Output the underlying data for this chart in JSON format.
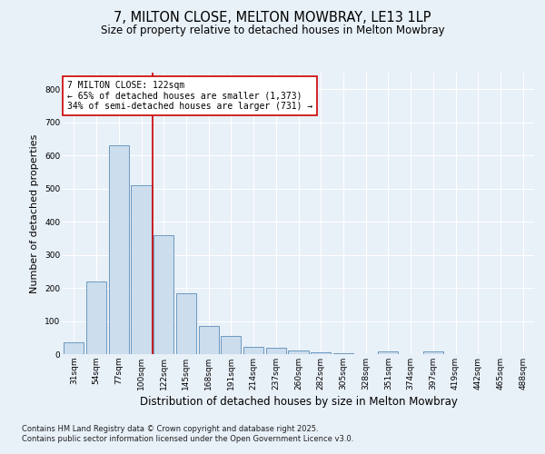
{
  "title": "7, MILTON CLOSE, MELTON MOWBRAY, LE13 1LP",
  "subtitle": "Size of property relative to detached houses in Melton Mowbray",
  "xlabel": "Distribution of detached houses by size in Melton Mowbray",
  "ylabel": "Number of detached properties",
  "categories": [
    "31sqm",
    "54sqm",
    "77sqm",
    "100sqm",
    "122sqm",
    "145sqm",
    "168sqm",
    "191sqm",
    "214sqm",
    "237sqm",
    "260sqm",
    "282sqm",
    "305sqm",
    "328sqm",
    "351sqm",
    "374sqm",
    "397sqm",
    "419sqm",
    "442sqm",
    "465sqm",
    "488sqm"
  ],
  "values": [
    35,
    220,
    630,
    510,
    360,
    185,
    85,
    55,
    22,
    18,
    12,
    5,
    2,
    0,
    8,
    0,
    7,
    0,
    0,
    0,
    0
  ],
  "bar_color": "#ccdded",
  "bar_edge_color": "#5b8db8",
  "highlight_line_color": "#cc0000",
  "annotation_text": "7 MILTON CLOSE: 122sqm\n← 65% of detached houses are smaller (1,373)\n34% of semi-detached houses are larger (731) →",
  "annotation_box_color": "#ffffff",
  "annotation_box_edge_color": "#cc0000",
  "ylim": [
    0,
    850
  ],
  "yticks": [
    0,
    100,
    200,
    300,
    400,
    500,
    600,
    700,
    800
  ],
  "bg_color": "#e8f0f8",
  "plot_bg_color": "#e8f0f8",
  "footer": "Contains HM Land Registry data © Crown copyright and database right 2025.\nContains public sector information licensed under the Open Government Licence v3.0.",
  "title_fontsize": 10.5,
  "subtitle_fontsize": 8.5,
  "ylabel_fontsize": 8,
  "xlabel_fontsize": 8.5,
  "tick_fontsize": 6.5,
  "annotation_fontsize": 7,
  "footer_fontsize": 6
}
